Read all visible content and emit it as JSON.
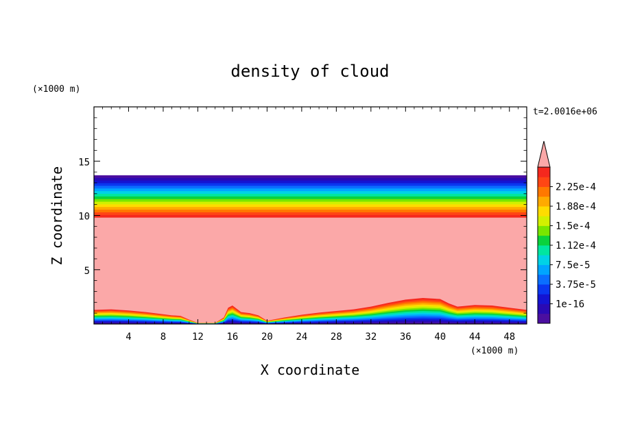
{
  "chart_data": {
    "type": "heatmap",
    "title": "density of cloud",
    "xlabel": "X coordinate",
    "ylabel": "Z coordinate",
    "x_unit": "(×1000 m)",
    "y_unit": "(×1000 m)",
    "time_label": "t=2.0016e+06",
    "xlim": [
      0,
      50
    ],
    "ylim": [
      0,
      20
    ],
    "x_ticks": [
      4,
      8,
      12,
      16,
      20,
      24,
      28,
      32,
      36,
      40,
      44,
      48
    ],
    "y_ticks": [
      5,
      10,
      15
    ],
    "colorbar": {
      "labels": [
        "2.25e-4",
        "1.88e-4",
        "1.5e-4",
        "1.12e-4",
        "7.5e-5",
        "3.75e-5",
        "1e-16"
      ],
      "extend": "max",
      "colors": [
        "#4b0fa0",
        "#2a0ab4",
        "#1414d2",
        "#0a37f0",
        "#0a6eff",
        "#00a5ff",
        "#00d2e6",
        "#00e6a0",
        "#0ad23c",
        "#78e600",
        "#d2f000",
        "#ffdc00",
        "#ffaa00",
        "#ff7800",
        "#ff4614",
        "#f5281e"
      ],
      "over_color": "#fba8a8"
    },
    "fields": {
      "upper_cloud_top_z": 13.7,
      "upper_cloud_core_top_z": 9.8,
      "lower_boundary_profile": {
        "x": [
          0,
          2,
          4,
          6,
          8,
          9,
          10,
          11,
          12,
          13,
          14,
          15,
          15.5,
          16,
          17,
          18,
          19,
          20,
          22,
          24,
          26,
          28,
          30,
          32,
          34,
          36,
          38,
          40,
          41,
          42,
          44,
          46,
          48,
          50
        ],
        "z": [
          1.3,
          1.35,
          1.25,
          1.1,
          0.9,
          0.8,
          0.75,
          0.4,
          0.1,
          0.1,
          0.1,
          0.6,
          1.5,
          1.7,
          1.1,
          1.0,
          0.8,
          0.3,
          0.6,
          0.85,
          1.05,
          1.2,
          1.35,
          1.6,
          1.95,
          2.25,
          2.4,
          2.3,
          1.9,
          1.6,
          1.75,
          1.7,
          1.5,
          1.3
        ]
      }
    }
  }
}
